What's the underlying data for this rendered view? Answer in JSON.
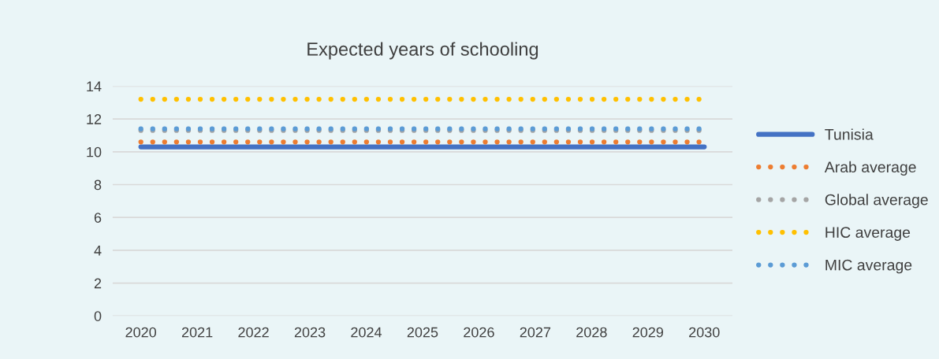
{
  "chart_data": {
    "type": "line",
    "title": "Expected years of schooling",
    "categories": [
      "2020",
      "2021",
      "2022",
      "2023",
      "2024",
      "2025",
      "2026",
      "2027",
      "2028",
      "2029",
      "2030"
    ],
    "series": [
      {
        "name": "Tunisia",
        "color": "#4472c4",
        "line_style": "solid",
        "values": [
          10.3,
          10.3,
          10.3,
          10.3,
          10.3,
          10.3,
          10.3,
          10.3,
          10.3,
          10.3,
          10.3
        ]
      },
      {
        "name": "Arab average",
        "color": "#ed7d31",
        "line_style": "dotted",
        "values": [
          10.6,
          10.6,
          10.6,
          10.6,
          10.6,
          10.6,
          10.6,
          10.6,
          10.6,
          10.6,
          10.6
        ]
      },
      {
        "name": "Global average",
        "color": "#a5a5a5",
        "line_style": "dotted",
        "values": [
          11.3,
          11.3,
          11.3,
          11.3,
          11.3,
          11.3,
          11.3,
          11.3,
          11.3,
          11.3,
          11.3
        ]
      },
      {
        "name": "HIC average",
        "color": "#ffc000",
        "line_style": "dotted",
        "values": [
          13.2,
          13.2,
          13.2,
          13.2,
          13.2,
          13.2,
          13.2,
          13.2,
          13.2,
          13.2,
          13.2
        ]
      },
      {
        "name": "MIC average",
        "color": "#5b9bd5",
        "line_style": "dotted",
        "values": [
          11.4,
          11.4,
          11.4,
          11.4,
          11.4,
          11.4,
          11.4,
          11.4,
          11.4,
          11.4,
          11.4
        ]
      }
    ],
    "ylim": [
      0,
      14
    ],
    "yticks": [
      0,
      2,
      4,
      6,
      8,
      10,
      12,
      14
    ],
    "grid": "y",
    "legend": "right"
  }
}
